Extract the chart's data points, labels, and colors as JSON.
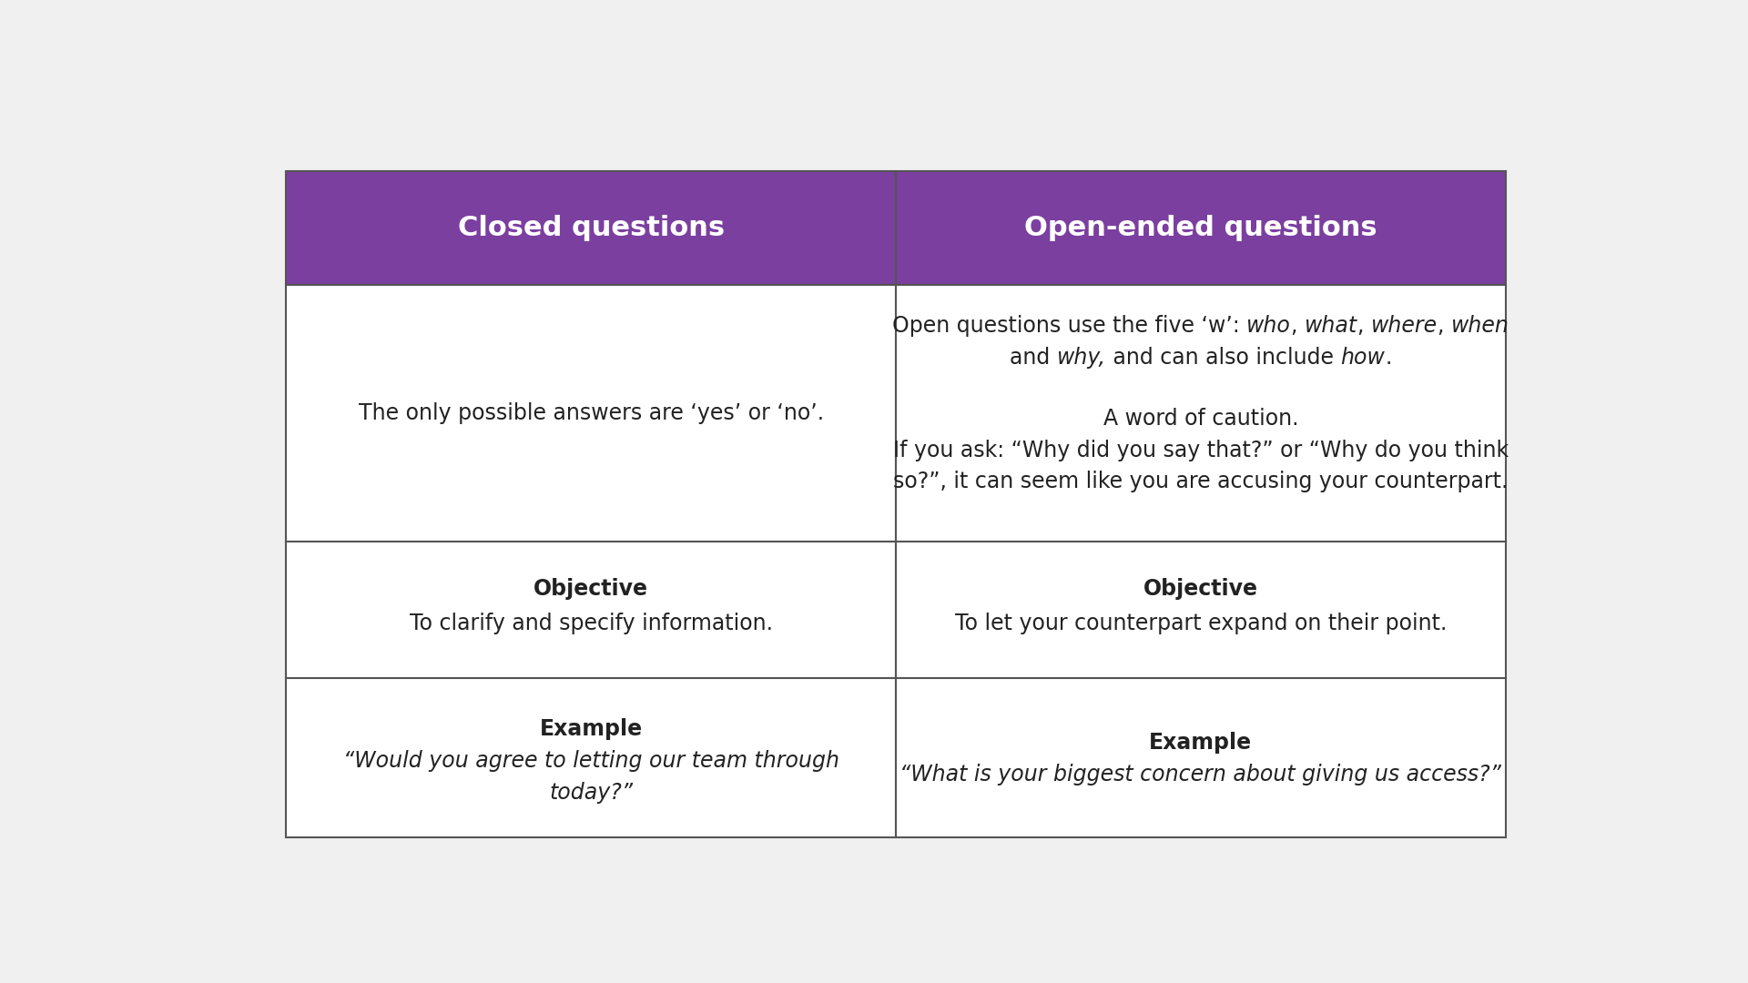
{
  "background_color": "#f0f0f0",
  "table_bg": "#ffffff",
  "header_bg": "#7b3fa0",
  "header_text_color": "#ffffff",
  "body_text_color": "#222222",
  "border_color": "#555555",
  "header_left": "Closed questions",
  "header_right": "Open-ended questions",
  "row1_left": "The only possible answers are ‘yes’ or ‘no’.",
  "row1_right_caution": "A word of caution.",
  "row1_right_caution2": "If you ask: “Why did you say that?” or “Why do you think",
  "row1_right_caution3": "so?”, it can seem like you are accusing your counterpart.",
  "row2_left_bold": "Objective",
  "row2_left_normal": "To clarify and specify information.",
  "row2_right_bold": "Objective",
  "row2_right_normal": "To let your counterpart expand on their point.",
  "row3_left_bold": "Example",
  "row3_left_italic_line1": "“Would you agree to letting our team through",
  "row3_left_italic_line2": "today?”",
  "row3_right_bold": "Example",
  "row3_right_italic": "“What is your biggest concern about giving us access?”",
  "header_font_size": 22,
  "body_font_size": 17,
  "bold_font_size": 17
}
